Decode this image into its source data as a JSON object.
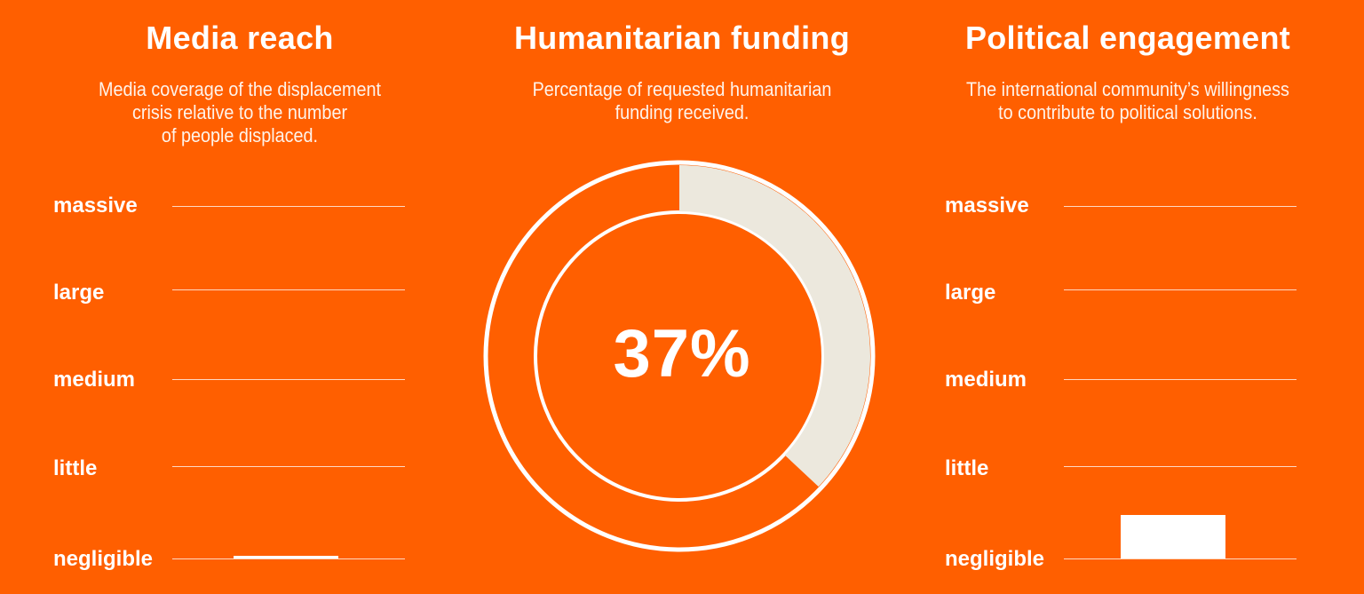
{
  "colors": {
    "background": "#ff5f00",
    "foreground": "#ffffff",
    "donut_fill": "#ece8dd"
  },
  "chart_data": [
    {
      "type": "bar",
      "title": "Media reach",
      "subtitle": "Media coverage of the displacement crisis relative to the number of people displaced.",
      "subtitle_lines": [
        "Media coverage of the displacement",
        "crisis relative to the number",
        "of people displaced."
      ],
      "levels": [
        "massive",
        "large",
        "medium",
        "little",
        "negligible"
      ],
      "scale": [
        0,
        4
      ],
      "values": [
        0.03
      ],
      "grid": true
    },
    {
      "type": "pie",
      "title": "Humanitarian funding",
      "subtitle": "Percentage of requested humanitarian funding received.",
      "subtitle_lines": [
        "Percentage of requested humanitarian",
        "funding received."
      ],
      "value_label": "37%",
      "values": [
        37,
        63
      ]
    },
    {
      "type": "bar",
      "title": "Political engagement",
      "subtitle": "The international community’s willingness to contribute to political solutions.",
      "subtitle_lines": [
        "The international community’s willingness",
        "to contribute to political solutions."
      ],
      "levels": [
        "massive",
        "large",
        "medium",
        "little",
        "negligible"
      ],
      "scale": [
        0,
        4
      ],
      "values": [
        0.49
      ],
      "grid": true
    }
  ]
}
